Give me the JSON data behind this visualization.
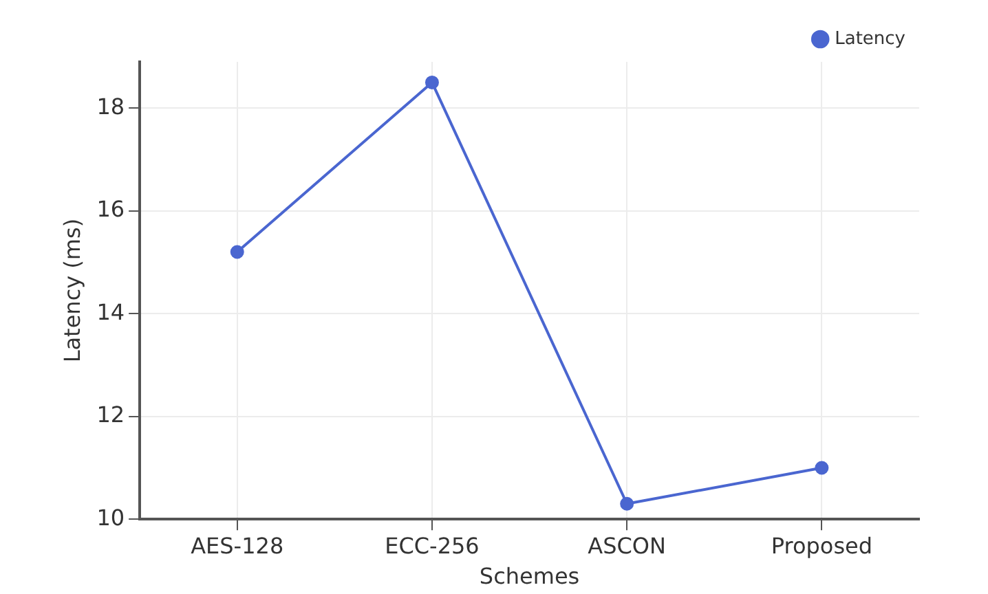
{
  "chart_data": {
    "type": "line",
    "xlabel": "Schemes",
    "ylabel": "Latency (ms)",
    "categories": [
      "AES-128",
      "ECC-256",
      "ASCON",
      "Proposed"
    ],
    "series": [
      {
        "name": "Latency",
        "color": "#4a66d0",
        "values": [
          15.2,
          18.5,
          10.3,
          11.0
        ]
      }
    ],
    "ylim": [
      10,
      18.9
    ],
    "yticks": [
      10,
      12,
      14,
      16,
      18
    ],
    "grid": true,
    "legend": "top right",
    "marker": "circle",
    "line_style": "solid"
  }
}
